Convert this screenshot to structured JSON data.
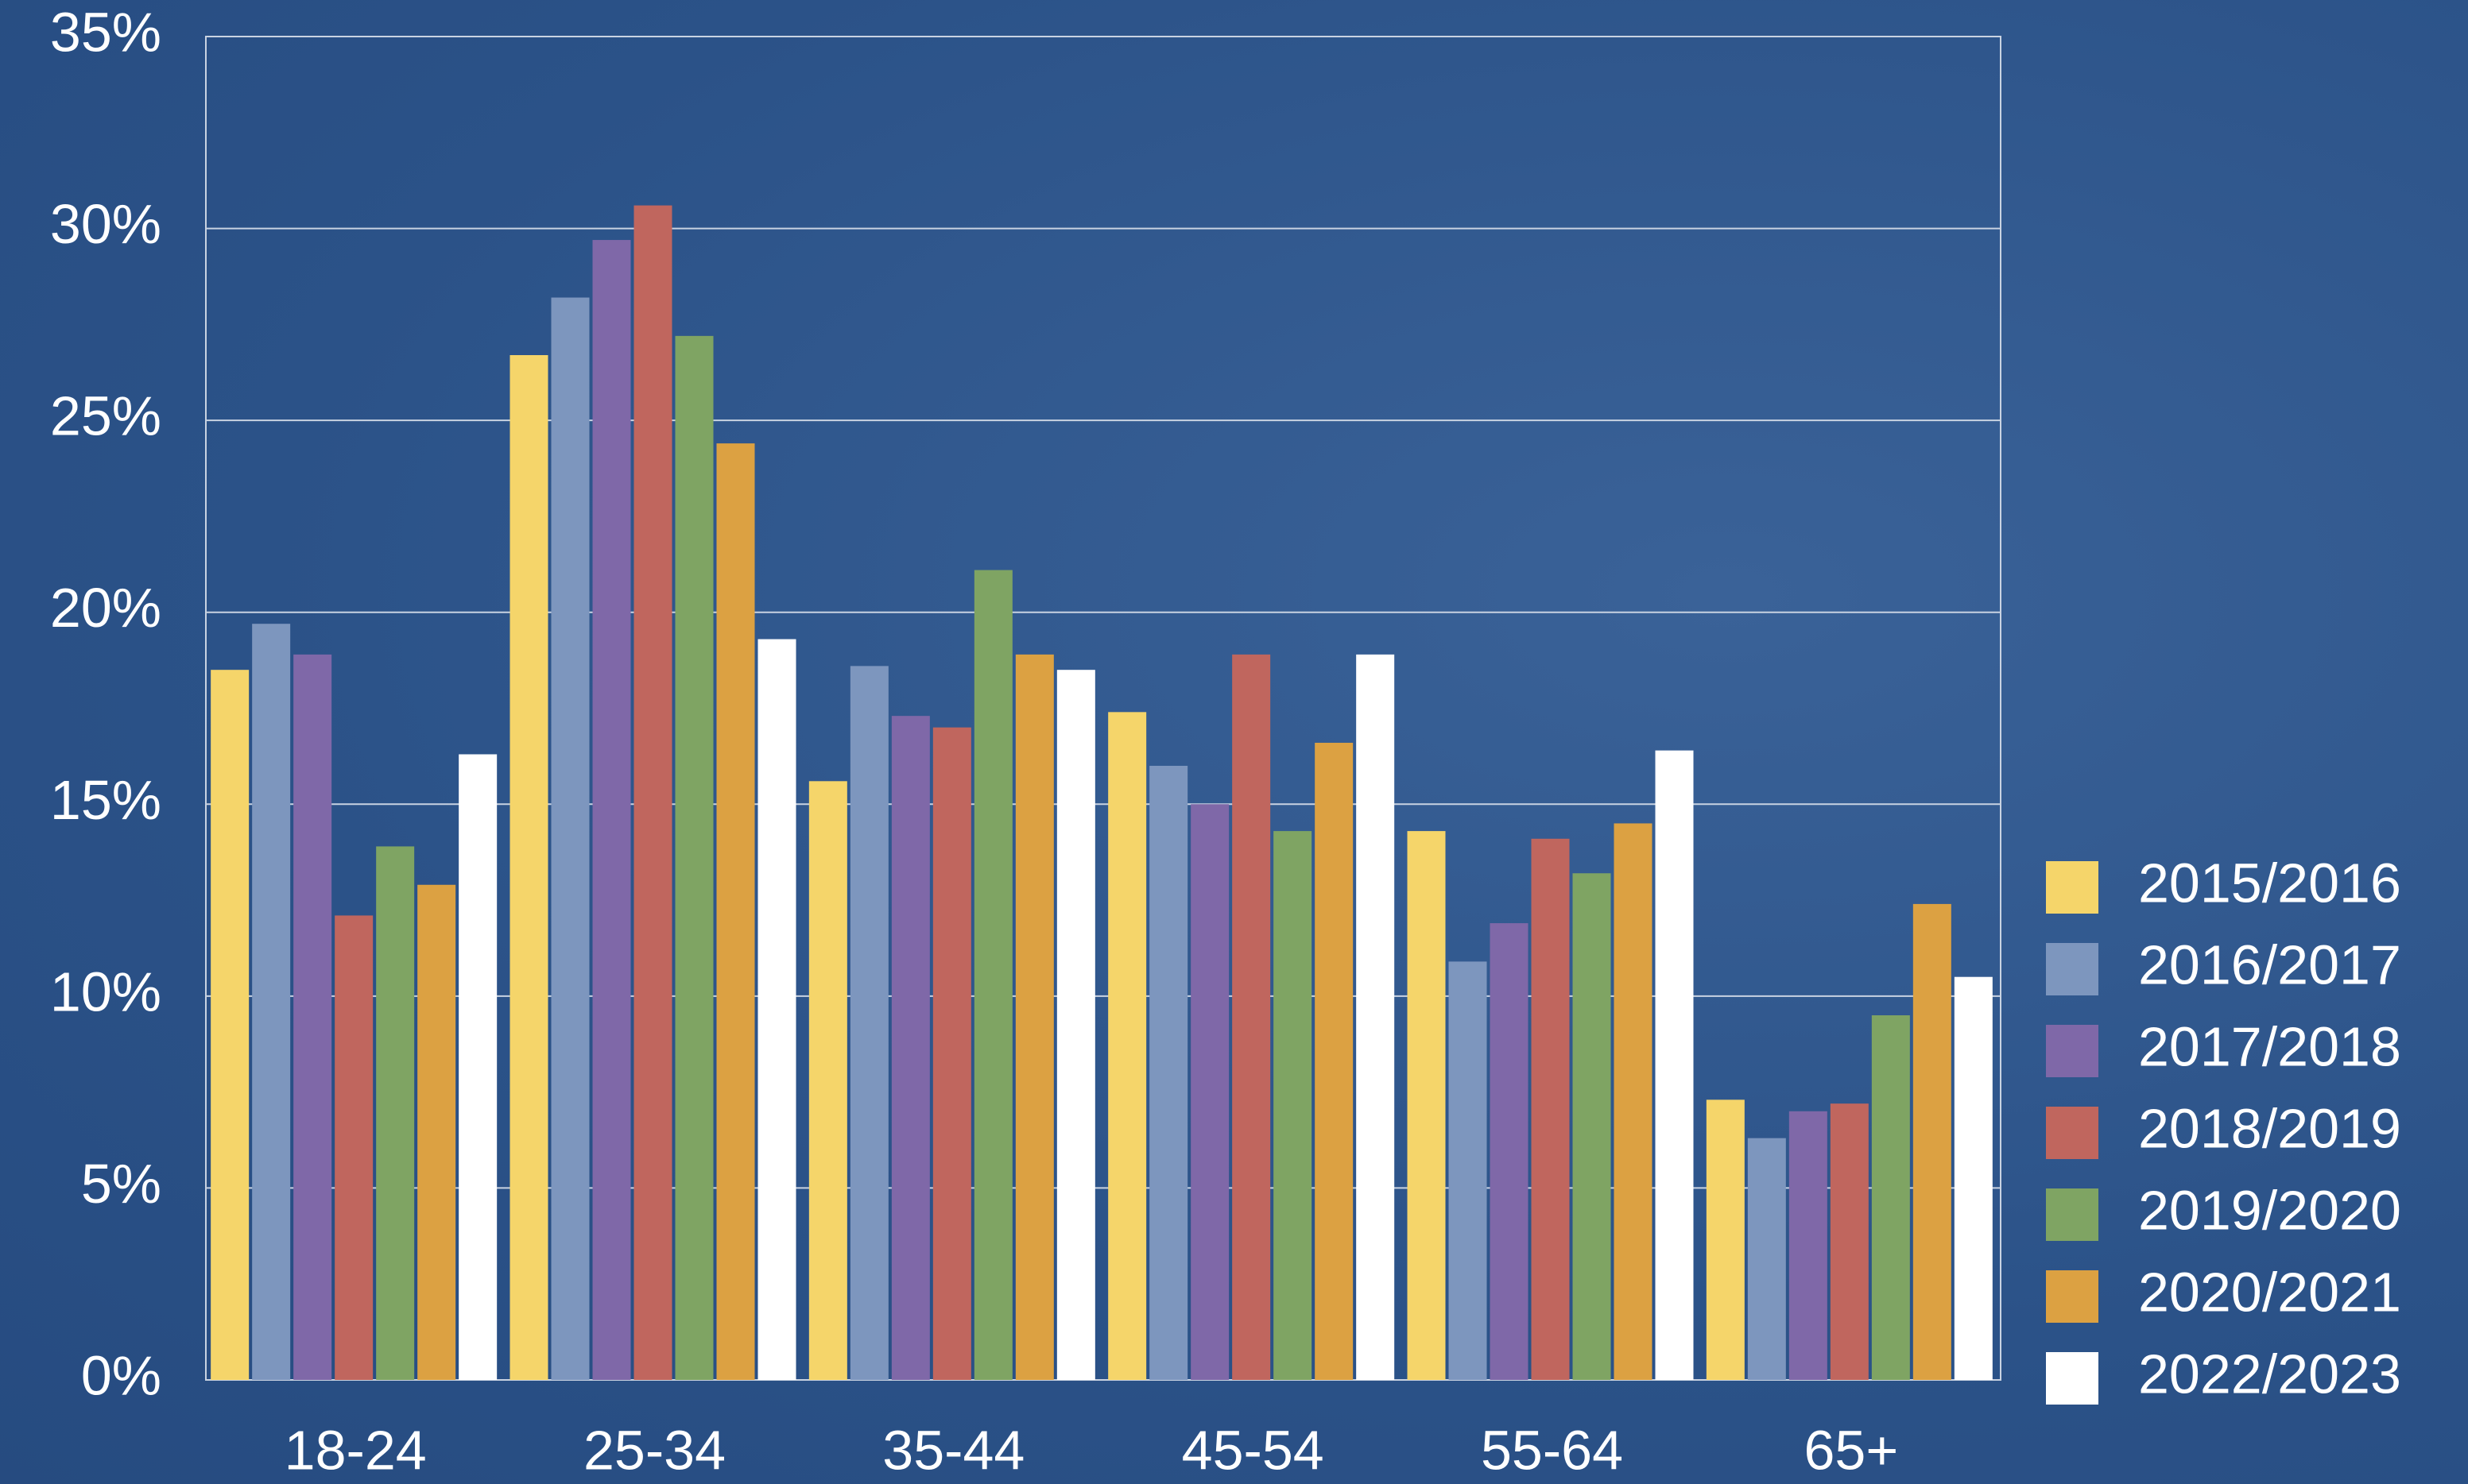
{
  "chart_data": {
    "type": "bar",
    "categories": [
      "18-24",
      "25-34",
      "35-44",
      "45-54",
      "55-64",
      "65+"
    ],
    "series": [
      {
        "name": "2015/2016",
        "color": "#f5d56a",
        "values": [
          18.5,
          26.7,
          15.6,
          17.4,
          14.3,
          7.3
        ]
      },
      {
        "name": "2016/2017",
        "color": "#7d96be",
        "values": [
          19.7,
          28.2,
          18.6,
          16.0,
          10.9,
          6.3
        ]
      },
      {
        "name": "2017/2018",
        "color": "#7f68a8",
        "values": [
          18.9,
          29.7,
          17.3,
          15.0,
          11.9,
          7.0
        ]
      },
      {
        "name": "2018/2019",
        "color": "#c0665e",
        "values": [
          12.1,
          30.6,
          17.0,
          18.9,
          14.1,
          7.2
        ]
      },
      {
        "name": "2019/2020",
        "color": "#7fa463",
        "values": [
          13.9,
          27.2,
          21.1,
          14.3,
          13.2,
          9.5
        ]
      },
      {
        "name": "2020/2021",
        "color": "#dca142",
        "values": [
          12.9,
          24.4,
          18.9,
          16.6,
          14.5,
          12.4
        ]
      },
      {
        "name": "2022/2023",
        "color": "#ffffff",
        "values": [
          16.3,
          19.3,
          18.5,
          18.9,
          16.4,
          10.5
        ]
      }
    ],
    "ylim": [
      0,
      35
    ],
    "yticks": [
      {
        "value": 0,
        "label": "0%"
      },
      {
        "value": 5,
        "label": "5%"
      },
      {
        "value": 10,
        "label": "10%"
      },
      {
        "value": 15,
        "label": "15%"
      },
      {
        "value": 20,
        "label": "20%"
      },
      {
        "value": 25,
        "label": "25%"
      },
      {
        "value": 30,
        "label": "30%"
      },
      {
        "value": 35,
        "label": "35%"
      }
    ],
    "grid": true,
    "legend": "right"
  }
}
